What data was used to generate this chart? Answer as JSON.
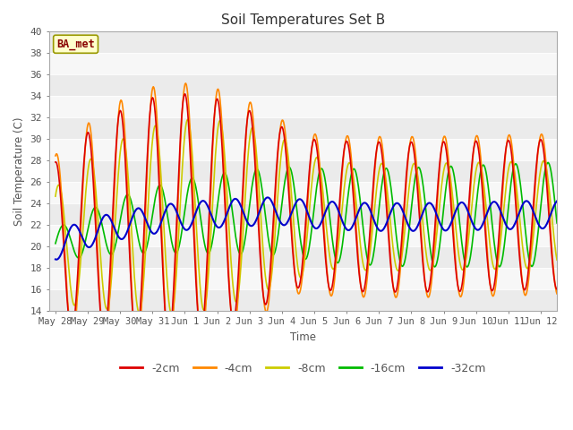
{
  "title": "Soil Temperatures Set B",
  "xlabel": "Time",
  "ylabel": "Soil Temperature (C)",
  "ylim": [
    14,
    40
  ],
  "figsize": [
    6.4,
    4.8
  ],
  "dpi": 100,
  "background_color": "#ffffff",
  "plot_bg_light": "#ebebeb",
  "plot_bg_dark": "#f7f7f7",
  "label_color": "#555555",
  "annotation_text": "BA_met",
  "annotation_bg": "#ffffcc",
  "annotation_fg": "#880000",
  "annotation_border": "#999900",
  "series": {
    "-2cm": {
      "color": "#dd0000",
      "lw": 1.2,
      "zorder": 5
    },
    "-4cm": {
      "color": "#ff8800",
      "lw": 1.2,
      "zorder": 4
    },
    "-8cm": {
      "color": "#cccc00",
      "lw": 1.2,
      "zorder": 3
    },
    "-16cm": {
      "color": "#00bb00",
      "lw": 1.2,
      "zorder": 2
    },
    "-32cm": {
      "color": "#0000cc",
      "lw": 1.5,
      "zorder": 6
    }
  },
  "x_tick_labels": [
    "May 28",
    "May 29",
    "May 30",
    "May 31",
    "Jun 1",
    "Jun 2",
    "Jun 3",
    "Jun 4",
    "Jun 5",
    "Jun 6",
    "Jun 7",
    "Jun 8",
    "Jun 9",
    "Jun 10",
    "Jun 11",
    "Jun 12"
  ],
  "num_days": 15.5,
  "points_per_day": 48
}
